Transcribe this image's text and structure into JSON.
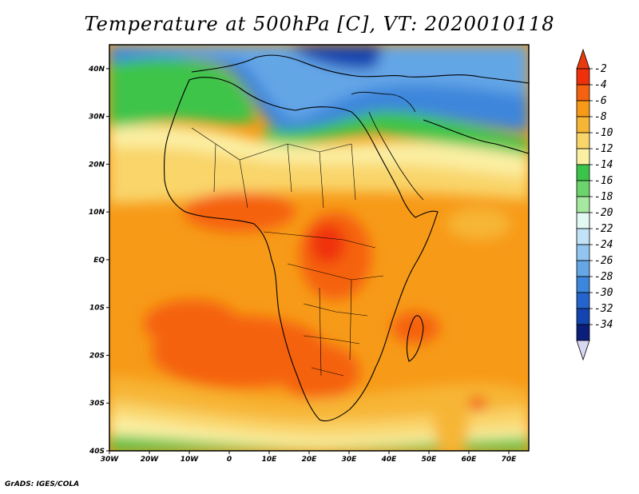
{
  "title": "Temperature at 500hPa [C], VT: 2020010118",
  "footer": "GrADS: IGES/COLA",
  "map": {
    "lat_range": [
      -40,
      45
    ],
    "lon_range": [
      -30,
      75
    ],
    "lat_ticks": [
      "40N",
      "30N",
      "20N",
      "10N",
      "EQ",
      "10S",
      "20S",
      "30S",
      "40S"
    ],
    "lon_ticks": [
      "30W",
      "20W",
      "10W",
      "0",
      "10E",
      "20E",
      "30E",
      "40E",
      "50E",
      "60E",
      "70E"
    ]
  },
  "colorbar": {
    "labels": [
      "-2",
      "-4",
      "-6",
      "-8",
      "-10",
      "-12",
      "-14",
      "-16",
      "-18",
      "-20",
      "-22",
      "-24",
      "-26",
      "-28",
      "-30",
      "-32",
      "-34"
    ],
    "colors": [
      "#f0300a",
      "#f5620f",
      "#f79a18",
      "#f7b535",
      "#f9d56a",
      "#fbefa3",
      "#3cc44a",
      "#6cd46c",
      "#a6e8a0",
      "#e2f8f2",
      "#c2e2f8",
      "#92c6f0",
      "#64a6e6",
      "#3c86dc",
      "#2464cc",
      "#1444b0",
      "#0a1e7a"
    ],
    "top_color": "#e83a0c",
    "bottom_color": "#d8d8f4"
  }
}
